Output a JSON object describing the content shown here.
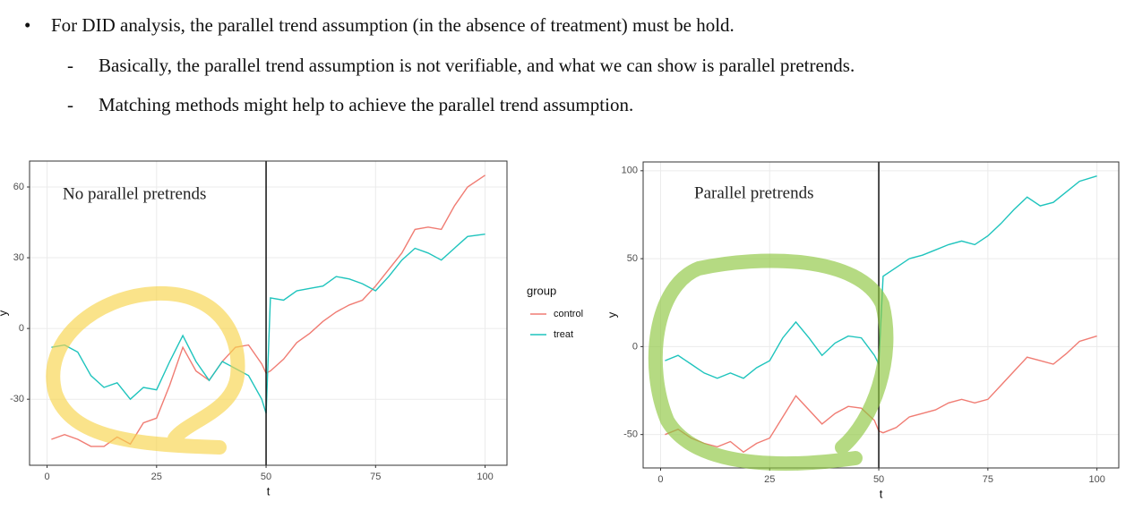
{
  "bullets": {
    "main": "For DID analysis, the parallel trend assumption (in the absence of treatment) must be hold.",
    "sub": [
      "Basically, the parallel trend assumption is not verifiable, and what we can show is parallel pretrends.",
      "Matching methods might help to achieve the parallel trend assumption."
    ]
  },
  "chart_data": [
    {
      "type": "line",
      "annotation": "No parallel pretrends",
      "xlabel": "t",
      "ylabel": "y",
      "x": [
        1,
        4,
        7,
        10,
        13,
        16,
        19,
        22,
        25,
        28,
        31,
        34,
        37,
        40,
        43,
        46,
        49,
        50,
        51,
        54,
        57,
        60,
        63,
        66,
        69,
        72,
        75,
        78,
        81,
        84,
        87,
        90,
        93,
        96,
        100
      ],
      "series": [
        {
          "name": "control",
          "color": "#f07c73",
          "values": [
            -47,
            -45,
            -47,
            -50,
            -50,
            -46,
            -49,
            -40,
            -38,
            -24,
            -8,
            -18,
            -22,
            -14,
            -8,
            -7,
            -15,
            -19,
            -18,
            -13,
            -6,
            -2,
            3,
            7,
            10,
            12,
            18,
            25,
            32,
            42,
            43,
            42,
            52,
            60,
            65
          ]
        },
        {
          "name": "treat",
          "color": "#1fc4bd",
          "values": [
            -8,
            -7,
            -10,
            -20,
            -25,
            -23,
            -30,
            -25,
            -26,
            -14,
            -3,
            -14,
            -22,
            -14,
            -17,
            -20,
            -30,
            -36,
            13,
            12,
            16,
            17,
            18,
            22,
            21,
            19,
            16,
            22,
            29,
            34,
            32,
            29,
            34,
            39,
            40
          ]
        }
      ],
      "xlim": [
        -4,
        105
      ],
      "ylim": [
        -58,
        71
      ],
      "xticks": [
        0,
        25,
        50,
        75,
        100
      ],
      "yticks": [
        -30,
        0,
        30,
        60
      ],
      "vline": 50,
      "grid": true,
      "legend": "right",
      "legend_title": "group"
    },
    {
      "type": "line",
      "annotation": "Parallel pretrends",
      "xlabel": "t",
      "ylabel": "y",
      "x": [
        1,
        4,
        7,
        10,
        13,
        16,
        19,
        22,
        25,
        28,
        31,
        34,
        37,
        40,
        43,
        46,
        49,
        50,
        51,
        54,
        57,
        60,
        63,
        66,
        69,
        72,
        75,
        78,
        81,
        84,
        87,
        90,
        93,
        96,
        100
      ],
      "series": [
        {
          "color": "#f07c73",
          "values": [
            -50,
            -47,
            -52,
            -55,
            -57,
            -54,
            -60,
            -55,
            -52,
            -40,
            -28,
            -36,
            -44,
            -38,
            -34,
            -35,
            -42,
            -48,
            -49,
            -46,
            -40,
            -38,
            -36,
            -32,
            -30,
            -32,
            -30,
            -22,
            -14,
            -6,
            -8,
            -10,
            -4,
            3,
            6
          ]
        },
        {
          "color": "#1fc4bd",
          "values": [
            -8,
            -5,
            -10,
            -15,
            -18,
            -15,
            -18,
            -12,
            -8,
            5,
            14,
            5,
            -5,
            2,
            6,
            5,
            -5,
            -10,
            40,
            45,
            50,
            52,
            55,
            58,
            60,
            58,
            63,
            70,
            78,
            85,
            80,
            82,
            88,
            94,
            97
          ]
        }
      ],
      "xlim": [
        -4,
        105
      ],
      "ylim": [
        -69,
        105
      ],
      "xticks": [
        0,
        25,
        50,
        75,
        100
      ],
      "yticks": [
        -50,
        0,
        50,
        100
      ],
      "vline": 50,
      "grid": true
    }
  ]
}
